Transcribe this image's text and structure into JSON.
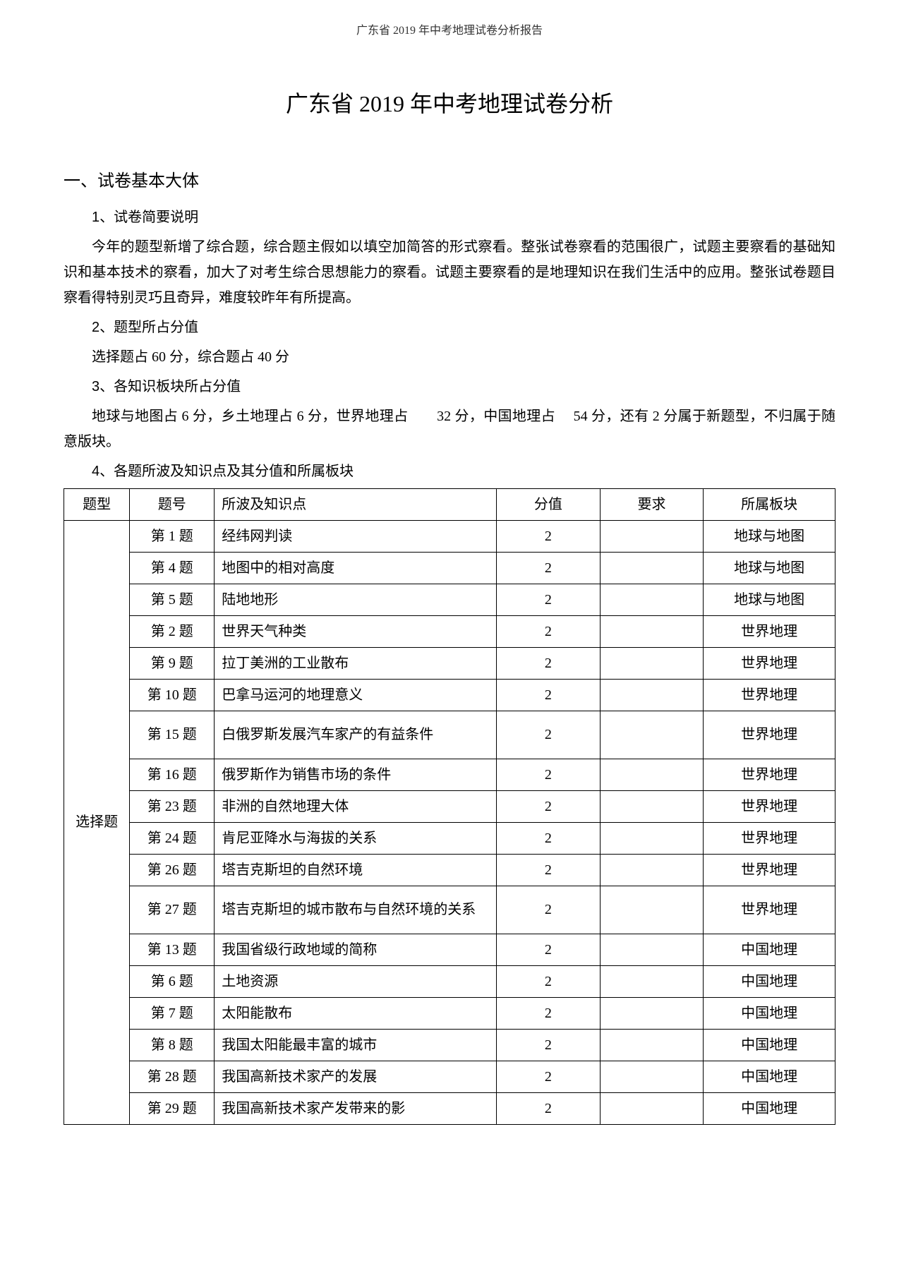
{
  "header": "广东省 2019 年中考地理试卷分析报告",
  "title": "广东省 2019 年中考地理试卷分析",
  "section1": {
    "heading": "一、试卷基本大体",
    "sub1": "1、试卷简要说明",
    "p1": "今年的题型新增了综合题，综合题主假如以填空加简答的形式察看。整张试卷察看的范围很广，试题主要察看的基础知识和基本技术的察看，加大了对考生综合思想能力的察看。试题主要察看的是地理知识在我们生活中的应用。整张试卷题目察看得特别灵巧且奇异，难度较昨年有所提高。",
    "sub2": "2、题型所占分值",
    "p2": "选择题占 60 分，综合题占 40 分",
    "sub3": "3、各知识板块所占分值",
    "p3": "地球与地图占 6 分，乡土地理占 6 分，世界地理占　　32 分，中国地理占　 54 分，还有 2 分属于新题型，不归属于随意版块。",
    "sub4": "4、各题所波及知识点及其分值和所属板块"
  },
  "table": {
    "headers": {
      "type": "题型",
      "num": "题号",
      "topic": "所波及知识点",
      "score": "分值",
      "req": "要求",
      "module": "所属板块"
    },
    "type_label": "选择题",
    "rows": [
      {
        "num": "第 1 题",
        "topic": "经纬网判读",
        "score": "2",
        "req": "",
        "module": "地球与地图"
      },
      {
        "num": "第 4 题",
        "topic": "地图中的相对高度",
        "score": "2",
        "req": "",
        "module": "地球与地图"
      },
      {
        "num": "第 5 题",
        "topic": "陆地地形",
        "score": "2",
        "req": "",
        "module": "地球与地图"
      },
      {
        "num": "第 2 题",
        "topic": "世界天气种类",
        "score": "2",
        "req": "",
        "module": "世界地理"
      },
      {
        "num": "第 9 题",
        "topic": "拉丁美洲的工业散布",
        "score": "2",
        "req": "",
        "module": "世界地理"
      },
      {
        "num": "第 10 题",
        "topic": "巴拿马运河的地理意义",
        "score": "2",
        "req": "",
        "module": "世界地理"
      },
      {
        "num": "第 15 题",
        "topic": "白俄罗斯发展汽车家产的有益条件",
        "score": "2",
        "req": "",
        "module": "世界地理",
        "tall": true
      },
      {
        "num": "第 16 题",
        "topic": "俄罗斯作为销售市场的条件",
        "score": "2",
        "req": "",
        "module": "世界地理"
      },
      {
        "num": "第 23 题",
        "topic": "非洲的自然地理大体",
        "score": "2",
        "req": "",
        "module": "世界地理"
      },
      {
        "num": "第 24 题",
        "topic": "肯尼亚降水与海拔的关系",
        "score": "2",
        "req": "",
        "module": "世界地理"
      },
      {
        "num": "第 26 题",
        "topic": "塔吉克斯坦的自然环境",
        "score": "2",
        "req": "",
        "module": "世界地理"
      },
      {
        "num": "第 27 题",
        "topic": "塔吉克斯坦的城市散布与自然环境的关系",
        "score": "2",
        "req": "",
        "module": "世界地理",
        "tall": true
      },
      {
        "num": "第 13 题",
        "topic": "我国省级行政地域的简称",
        "score": "2",
        "req": "",
        "module": "中国地理"
      },
      {
        "num": "第 6 题",
        "topic": "土地资源",
        "score": "2",
        "req": "",
        "module": "中国地理"
      },
      {
        "num": "第 7 题",
        "topic": "太阳能散布",
        "score": "2",
        "req": "",
        "module": "中国地理"
      },
      {
        "num": "第 8 题",
        "topic": "我国太阳能最丰富的城市",
        "score": "2",
        "req": "",
        "module": "中国地理"
      },
      {
        "num": "第 28 题",
        "topic": "我国高新技术家产的发展",
        "score": "2",
        "req": "",
        "module": "中国地理"
      },
      {
        "num": "第 29 题",
        "topic": "我国高新技术家产发带来的影",
        "score": "2",
        "req": "",
        "module": "中国地理"
      }
    ]
  }
}
